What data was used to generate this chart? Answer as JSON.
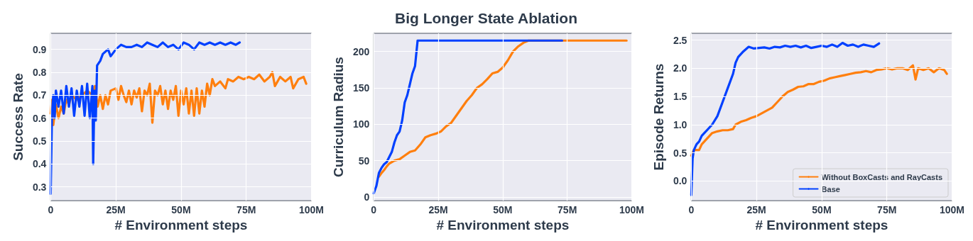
{
  "chart_data": [
    {
      "type": "line",
      "xlabel": "# Environment steps",
      "ylabel": "Success Rate",
      "xlim": [
        0,
        100
      ],
      "ylim": [
        0.24,
        0.97
      ],
      "xticks": [
        {
          "value": 0,
          "label": "0"
        },
        {
          "value": 25,
          "label": "25M"
        },
        {
          "value": 50,
          "label": "50M"
        },
        {
          "value": 75,
          "label": "75M"
        },
        {
          "value": 100,
          "label": "100M"
        }
      ],
      "yticks": [
        0.3,
        0.4,
        0.5,
        0.6,
        0.7,
        0.8,
        0.9
      ],
      "grid": true,
      "legend": false,
      "series": [
        {
          "color": "#ff7f0e",
          "x": [
            0,
            0.5,
            1,
            2,
            3,
            4,
            5,
            6,
            7,
            8,
            10,
            12,
            14,
            16,
            17,
            18,
            19,
            20,
            21,
            22,
            23,
            25,
            26,
            27,
            28,
            29,
            30,
            31,
            32,
            33,
            34,
            35,
            36,
            37,
            38,
            39,
            40,
            41,
            42,
            43,
            44,
            45,
            46,
            47,
            48,
            49,
            50,
            51,
            52,
            53,
            54,
            55,
            56,
            57,
            58,
            59,
            60,
            61,
            62,
            63,
            65,
            67,
            68,
            70,
            72,
            74,
            76,
            78,
            80,
            82,
            84,
            85,
            86,
            88,
            90,
            92,
            93,
            95,
            97,
            98
          ],
          "values": [
            0.62,
            0.68,
            0.57,
            0.66,
            0.6,
            0.65,
            0.62,
            0.68,
            0.66,
            0.7,
            0.68,
            0.7,
            0.72,
            0.7,
            0.74,
            0.65,
            0.7,
            0.64,
            0.7,
            0.66,
            0.72,
            0.73,
            0.68,
            0.74,
            0.7,
            0.67,
            0.72,
            0.66,
            0.72,
            0.69,
            0.73,
            0.63,
            0.72,
            0.7,
            0.75,
            0.58,
            0.72,
            0.7,
            0.74,
            0.66,
            0.72,
            0.64,
            0.72,
            0.68,
            0.74,
            0.61,
            0.72,
            0.66,
            0.73,
            0.62,
            0.72,
            0.61,
            0.73,
            0.62,
            0.72,
            0.65,
            0.75,
            0.7,
            0.77,
            0.74,
            0.76,
            0.73,
            0.77,
            0.76,
            0.78,
            0.77,
            0.78,
            0.77,
            0.79,
            0.76,
            0.78,
            0.8,
            0.74,
            0.78,
            0.76,
            0.78,
            0.73,
            0.77,
            0.78,
            0.75
          ]
        },
        {
          "color": "#0040ff",
          "x": [
            0,
            0.5,
            1,
            1.5,
            2,
            3,
            4,
            5,
            6,
            7,
            8,
            9,
            10,
            11,
            12,
            13,
            14,
            15,
            16,
            16.3,
            16.8,
            17.3,
            17.8,
            19,
            20,
            22,
            23,
            25,
            27,
            29,
            31,
            33,
            35,
            37,
            39,
            41,
            43,
            45,
            47,
            49,
            51,
            53,
            55,
            57,
            59,
            61,
            63,
            65,
            67,
            69,
            71,
            72.5
          ],
          "values": [
            0.27,
            0.62,
            0.7,
            0.6,
            0.72,
            0.65,
            0.72,
            0.62,
            0.74,
            0.65,
            0.73,
            0.61,
            0.72,
            0.65,
            0.74,
            0.61,
            0.75,
            0.6,
            0.74,
            0.4,
            0.72,
            0.59,
            0.83,
            0.85,
            0.88,
            0.9,
            0.87,
            0.9,
            0.92,
            0.91,
            0.91,
            0.92,
            0.91,
            0.93,
            0.92,
            0.91,
            0.93,
            0.91,
            0.92,
            0.9,
            0.93,
            0.92,
            0.9,
            0.93,
            0.92,
            0.93,
            0.92,
            0.93,
            0.92,
            0.93,
            0.92,
            0.93
          ]
        }
      ]
    },
    {
      "type": "line",
      "title": "Big Longer State Ablation",
      "xlabel": "# Environment steps",
      "ylabel": "Curriculum Radius",
      "xlim": [
        0,
        100
      ],
      "ylim": [
        -5,
        225
      ],
      "xticks": [
        {
          "value": 0,
          "label": "0"
        },
        {
          "value": 25,
          "label": "25M"
        },
        {
          "value": 50,
          "label": "50M"
        },
        {
          "value": 75,
          "label": "75M"
        },
        {
          "value": 100,
          "label": "100M"
        }
      ],
      "yticks": [
        0,
        50,
        100,
        150,
        200
      ],
      "grid": true,
      "legend": false,
      "series": [
        {
          "color": "#ff7f0e",
          "x": [
            2,
            3,
            4,
            5,
            6,
            8,
            10,
            12,
            14,
            16,
            18,
            20,
            22,
            24,
            26,
            28,
            30,
            32,
            34,
            36,
            38,
            40,
            42,
            44,
            46,
            48,
            50,
            52,
            54,
            56,
            58,
            60,
            98
          ],
          "values": [
            28,
            33,
            37,
            42,
            46,
            50,
            52,
            57,
            62,
            64,
            72,
            82,
            85,
            87,
            90,
            97,
            102,
            112,
            122,
            132,
            140,
            150,
            155,
            162,
            170,
            172,
            178,
            188,
            200,
            207,
            212,
            215,
            215
          ]
        },
        {
          "color": "#0040ff",
          "x": [
            0,
            1,
            2,
            3,
            4,
            5,
            6,
            7,
            8,
            9,
            10,
            11,
            12,
            13,
            14,
            15,
            16,
            17,
            73
          ],
          "values": [
            5,
            15,
            33,
            40,
            45,
            48,
            55,
            62,
            75,
            85,
            90,
            105,
            130,
            140,
            155,
            170,
            180,
            215,
            215
          ]
        }
      ]
    },
    {
      "type": "line",
      "xlabel": "# Environment steps",
      "ylabel": "Episode Returns",
      "xlim": [
        0,
        100
      ],
      "ylim": [
        -0.35,
        2.62
      ],
      "xticks": [
        {
          "value": 0,
          "label": "0"
        },
        {
          "value": 25,
          "label": "25M"
        },
        {
          "value": 50,
          "label": "50M"
        },
        {
          "value": 75,
          "label": "75M"
        },
        {
          "value": 100,
          "label": "100M"
        }
      ],
      "yticks": [
        {
          "value": 0,
          "label": "0.0"
        },
        0.5,
        {
          "value": 1,
          "label": "1.0"
        },
        1.5,
        {
          "value": 2,
          "label": "2.0"
        },
        2.5
      ],
      "grid": true,
      "legend": "bottom right",
      "series": [
        {
          "name": "Without BoxCasts and RayCasts",
          "color": "#ff7f0e",
          "x": [
            0,
            1,
            3,
            4,
            6,
            8,
            10,
            12,
            14,
            16,
            17,
            19,
            21,
            23,
            25,
            27,
            29,
            31,
            33,
            35,
            37,
            39,
            41,
            43,
            45,
            47,
            49,
            51,
            53,
            55,
            57,
            59,
            61,
            63,
            65,
            67,
            69,
            71,
            73,
            75,
            77,
            79,
            81,
            83,
            85,
            86,
            87,
            89,
            91,
            93,
            95,
            97,
            98
          ],
          "values": [
            0.45,
            0.55,
            0.55,
            0.65,
            0.75,
            0.85,
            0.88,
            0.9,
            0.9,
            0.92,
            1,
            1.05,
            1.08,
            1.12,
            1.15,
            1.2,
            1.25,
            1.3,
            1.4,
            1.5,
            1.58,
            1.62,
            1.67,
            1.68,
            1.72,
            1.72,
            1.76,
            1.78,
            1.82,
            1.84,
            1.86,
            1.88,
            1.9,
            1.92,
            1.93,
            1.95,
            1.93,
            1.97,
            1.98,
            2,
            1.98,
            2,
            2,
            1.97,
            2.05,
            1.8,
            2,
            1.97,
            2,
            1.93,
            2,
            1.97,
            1.9
          ]
        },
        {
          "name": "Base",
          "color": "#0040ff",
          "x": [
            0,
            0.5,
            1,
            2,
            3,
            4,
            5,
            6,
            8,
            10,
            12,
            14,
            16,
            17,
            18,
            20,
            22,
            24,
            26,
            28,
            30,
            32,
            34,
            36,
            38,
            40,
            42,
            44,
            46,
            48,
            50,
            52,
            54,
            56,
            58,
            60,
            62,
            64,
            66,
            68,
            70,
            72
          ],
          "values": [
            -0.25,
            0.4,
            0.55,
            0.65,
            0.7,
            0.8,
            0.85,
            0.9,
            1,
            1.15,
            1.4,
            1.65,
            1.9,
            2.1,
            2.2,
            2.3,
            2.38,
            2.35,
            2.36,
            2.37,
            2.35,
            2.38,
            2.37,
            2.4,
            2.38,
            2.4,
            2.37,
            2.4,
            2.36,
            2.38,
            2.4,
            2.38,
            2.42,
            2.38,
            2.45,
            2.4,
            2.42,
            2.38,
            2.42,
            2.4,
            2.38,
            2.44
          ]
        }
      ]
    }
  ]
}
